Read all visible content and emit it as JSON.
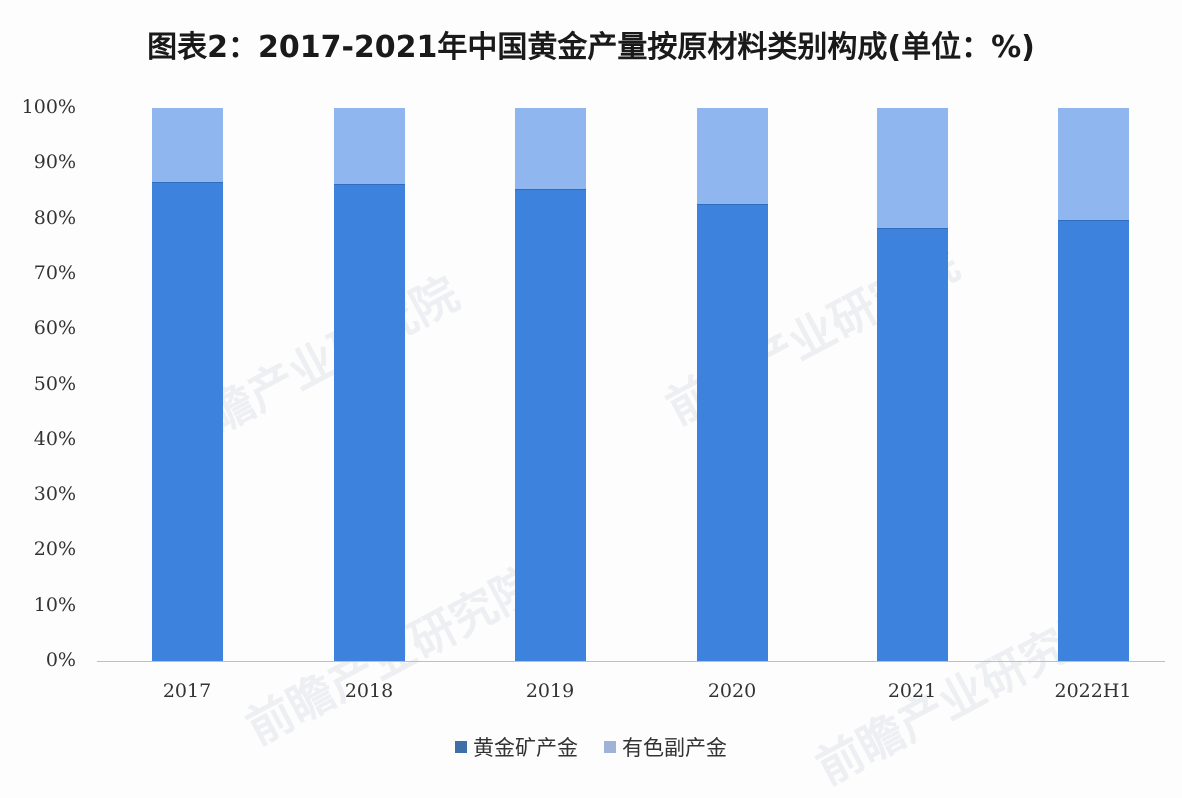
{
  "title": "图表2：2017-2021年中国黄金产量按原材料类别构成(单位：%)",
  "yticks": [
    "100%",
    "90%",
    "80%",
    "70%",
    "60%",
    "50%",
    "40%",
    "30%",
    "20%",
    "10%",
    "0%"
  ],
  "legend": [
    {
      "label": "黄金矿产金",
      "color": "#3d82dc"
    },
    {
      "label": "有色副产金",
      "color": "#8fb6ef"
    }
  ],
  "watermark": "前瞻产业研究院",
  "chart_data": {
    "type": "bar",
    "stacked": true,
    "percent_stacked": true,
    "title": "图表2：2017-2021年中国黄金产量按原材料类别构成(单位：%)",
    "xlabel": "",
    "ylabel": "",
    "ylim": [
      0,
      100
    ],
    "grid": false,
    "legend_position": "bottom",
    "categories": [
      "2017",
      "2018",
      "2019",
      "2020",
      "2021",
      "2022H1"
    ],
    "series": [
      {
        "name": "黄金矿产金",
        "color": "#3d82dc",
        "values": [
          86.6,
          86.3,
          85.4,
          82.6,
          78.3,
          79.7
        ]
      },
      {
        "name": "有色副产金",
        "color": "#8fb6ef",
        "values": [
          13.4,
          13.7,
          14.6,
          17.4,
          21.7,
          20.3
        ]
      }
    ]
  }
}
